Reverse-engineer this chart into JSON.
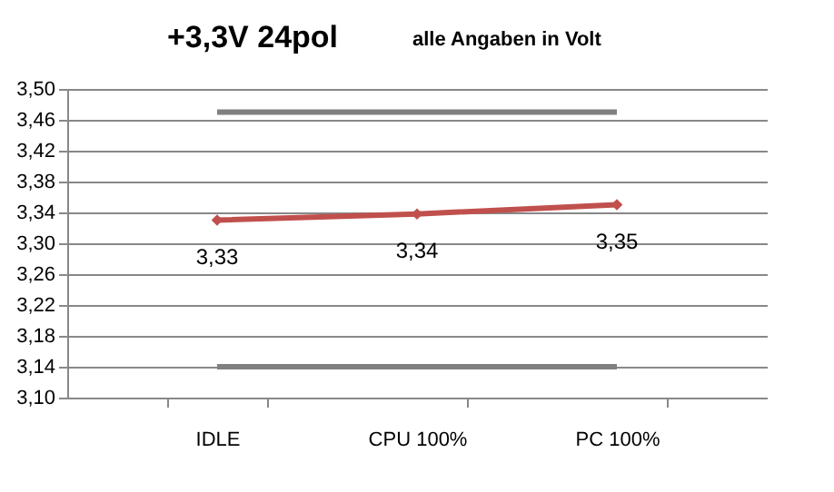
{
  "chart_data": {
    "type": "line",
    "title": "+3,3V  24pol",
    "subtitle": "alle Angaben in Volt",
    "categories": [
      "IDLE",
      "CPU 100%",
      "PC 100%"
    ],
    "series": [
      {
        "color": "#808080",
        "values": [
          3.47,
          3.47,
          3.47
        ],
        "marker": "none"
      },
      {
        "color": "#808080",
        "values": [
          3.14,
          3.14,
          3.14
        ],
        "marker": "none"
      },
      {
        "color": "#c0504d",
        "values": [
          3.33,
          3.338,
          3.35
        ],
        "marker": "diamond",
        "value_labels": [
          "3,33",
          "3,34",
          "3,35"
        ]
      }
    ],
    "ylim": [
      3.1,
      3.5
    ],
    "yticks": [
      {
        "value": 3.1,
        "label": "3,10"
      },
      {
        "value": 3.14,
        "label": "3,14"
      },
      {
        "value": 3.18,
        "label": "3,18"
      },
      {
        "value": 3.22,
        "label": "3,22"
      },
      {
        "value": 3.26,
        "label": "3,26"
      },
      {
        "value": 3.3,
        "label": "3,30"
      },
      {
        "value": 3.34,
        "label": "3,34"
      },
      {
        "value": 3.38,
        "label": "3,38"
      },
      {
        "value": 3.42,
        "label": "3,42"
      },
      {
        "value": 3.46,
        "label": "3,46"
      },
      {
        "value": 3.5,
        "label": "3,50"
      }
    ],
    "grid": "y",
    "line_style": "solid"
  }
}
